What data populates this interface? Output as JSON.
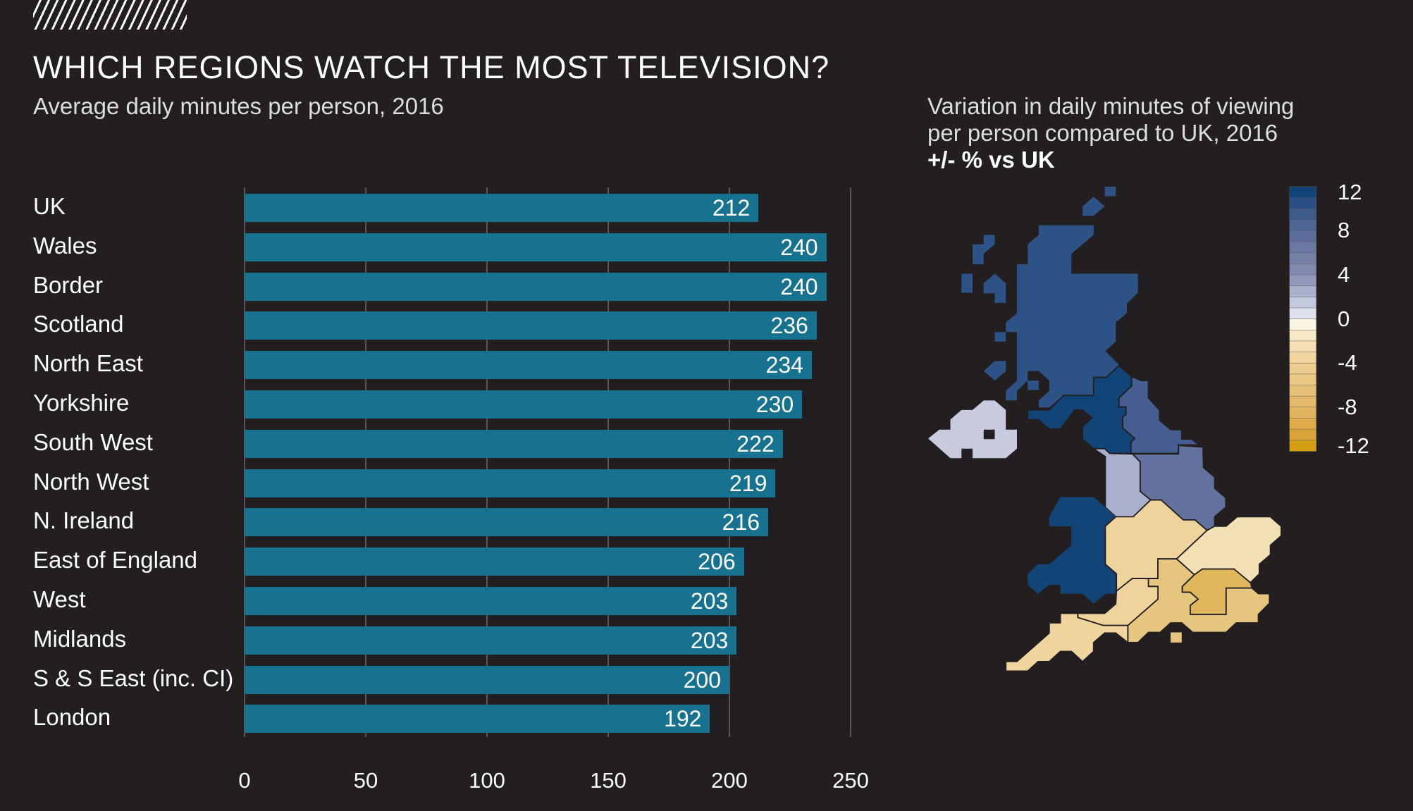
{
  "header": {
    "title": "WHICH REGIONS WATCH THE MOST TELEVISION?",
    "subtitle": "Average daily minutes per person, 2016"
  },
  "chart_data": {
    "type": "bar",
    "orientation": "horizontal",
    "title": "WHICH REGIONS WATCH THE MOST TELEVISION?",
    "subtitle": "Average daily minutes per person, 2016",
    "categories": [
      "UK",
      "Wales",
      "Border",
      "Scotland",
      "North East",
      "Yorkshire",
      "South West",
      "North West",
      "N. Ireland",
      "East of England",
      "West",
      "Midlands",
      "S & S East (inc. CI)",
      "London"
    ],
    "values": [
      212,
      240,
      240,
      236,
      234,
      230,
      222,
      219,
      216,
      206,
      203,
      203,
      200,
      192
    ],
    "xlim": [
      0,
      250
    ],
    "xticks": [
      "0",
      "50",
      "100",
      "150",
      "200",
      "250"
    ],
    "grid": true,
    "bar_color": "#17728f"
  },
  "map": {
    "heading_line1": "Variation in daily minutes of viewing",
    "heading_line2": "per person compared to UK, 2016",
    "heading_bold": "+/- % vs UK",
    "legend_labels": [
      "12",
      "8",
      "4",
      "0",
      "-4",
      "-8",
      "-12"
    ],
    "legend_values": [
      12,
      8,
      4,
      0,
      -4,
      -8,
      -12
    ],
    "legend_colors": [
      "#124478",
      "#2a4f85",
      "#3d5a8c",
      "#4f6594",
      "#5b6c9a",
      "#6a78a2",
      "#7681a8",
      "#8189af",
      "#9498ba",
      "#aab0cb",
      "#c5c9dd",
      "#dfe1ec",
      "#fbf6e4",
      "#f7e8c6",
      "#f4e0b3",
      "#f0d59f",
      "#edcd8f",
      "#eac785",
      "#e7c077",
      "#e4b96a",
      "#e2b35d",
      "#dfab4b",
      "#dba43a",
      "#d49f13"
    ],
    "region_colors": {
      "scotland": "#2d5286",
      "border": "#124478",
      "north_east": "#465d91",
      "yorkshire": "#63719e",
      "north_west": "#a9afcc",
      "n_ireland": "#c8cadf",
      "wales": "#124478",
      "midlands": "#efd39c",
      "east_of_england": "#f2dfb3",
      "london": "#e0b75c",
      "s_s_east": "#e6c67e",
      "west": "#efd39c",
      "south_west": "#f0d49e"
    }
  }
}
